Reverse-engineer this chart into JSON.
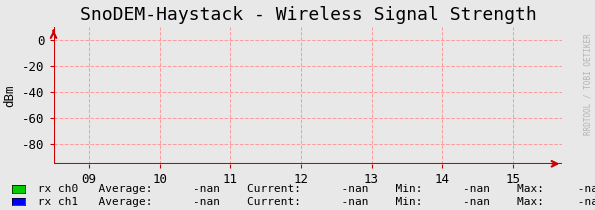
{
  "title": "SnoDEM-Haystack - Wireless Signal Strength",
  "ylabel": "dBm",
  "bg_color": "#e8e8e8",
  "plot_bg_color": "#e8e8e8",
  "grid_color": "#ff9999",
  "axis_color": "#cc0000",
  "ylim": [
    -95,
    10
  ],
  "yticks": [
    0,
    -20,
    -40,
    -60,
    -80
  ],
  "xlim": [
    8.5,
    15.7
  ],
  "xticks": [
    9,
    10,
    11,
    12,
    13,
    14,
    15
  ],
  "xticklabels": [
    "09",
    "10",
    "11",
    "12",
    "13",
    "14",
    "15"
  ],
  "arrow_color": "#cc0000",
  "watermark": "RRDTOOL / TOBI OETIKER",
  "watermark_color": "#aaaaaa",
  "legend": [
    {
      "label": "rx ch0",
      "color": "#00cc00"
    },
    {
      "label": "rx ch1",
      "color": "#0000ff"
    }
  ],
  "title_fontsize": 13,
  "tick_fontsize": 9,
  "label_fontsize": 9,
  "legend_fontsize": 8
}
